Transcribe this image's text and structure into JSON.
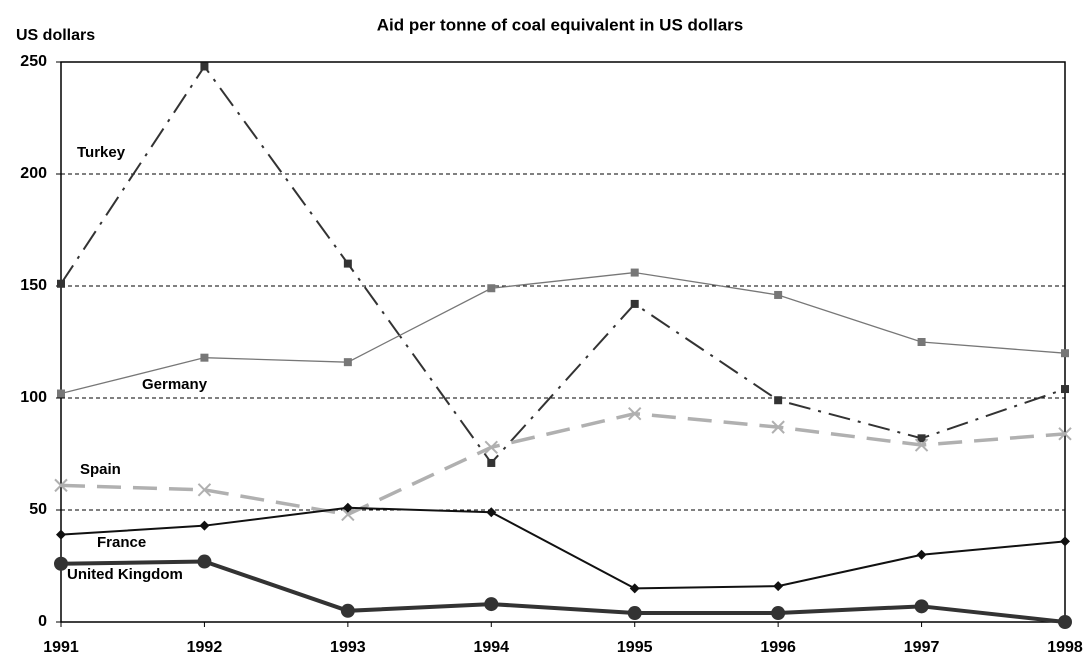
{
  "chart_data": {
    "type": "line",
    "title": "Aid per tonne of coal equivalent in US dollars",
    "y_label": "US dollars",
    "categories": [
      "1991",
      "1992",
      "1993",
      "1994",
      "1995",
      "1996",
      "1997",
      "1998"
    ],
    "ylim": [
      0,
      250
    ],
    "yticks": [
      0,
      50,
      100,
      150,
      200,
      250
    ],
    "grid": true,
    "series": [
      {
        "name": "Turkey",
        "color": "#333333",
        "dash": "dashdot",
        "marker": "square",
        "values": [
          151,
          248,
          160,
          71,
          142,
          99,
          82,
          104
        ]
      },
      {
        "name": "Germany",
        "color": "#777777",
        "dash": "solid",
        "marker": "square",
        "values": [
          102,
          118,
          116,
          149,
          156,
          146,
          125,
          120
        ]
      },
      {
        "name": "Spain",
        "color": "#b0b0b0",
        "dash": "dashed",
        "marker": "x",
        "values": [
          61,
          59,
          48,
          78,
          93,
          87,
          79,
          84
        ]
      },
      {
        "name": "France",
        "color": "#111111",
        "dash": "solid",
        "marker": "diamond",
        "values": [
          39,
          43,
          51,
          49,
          15,
          16,
          30,
          36
        ]
      },
      {
        "name": "United Kingdom",
        "color": "#333333",
        "dash": "solid",
        "marker": "circle",
        "values": [
          26,
          27,
          5,
          8,
          4,
          4,
          7,
          0
        ]
      }
    ]
  }
}
